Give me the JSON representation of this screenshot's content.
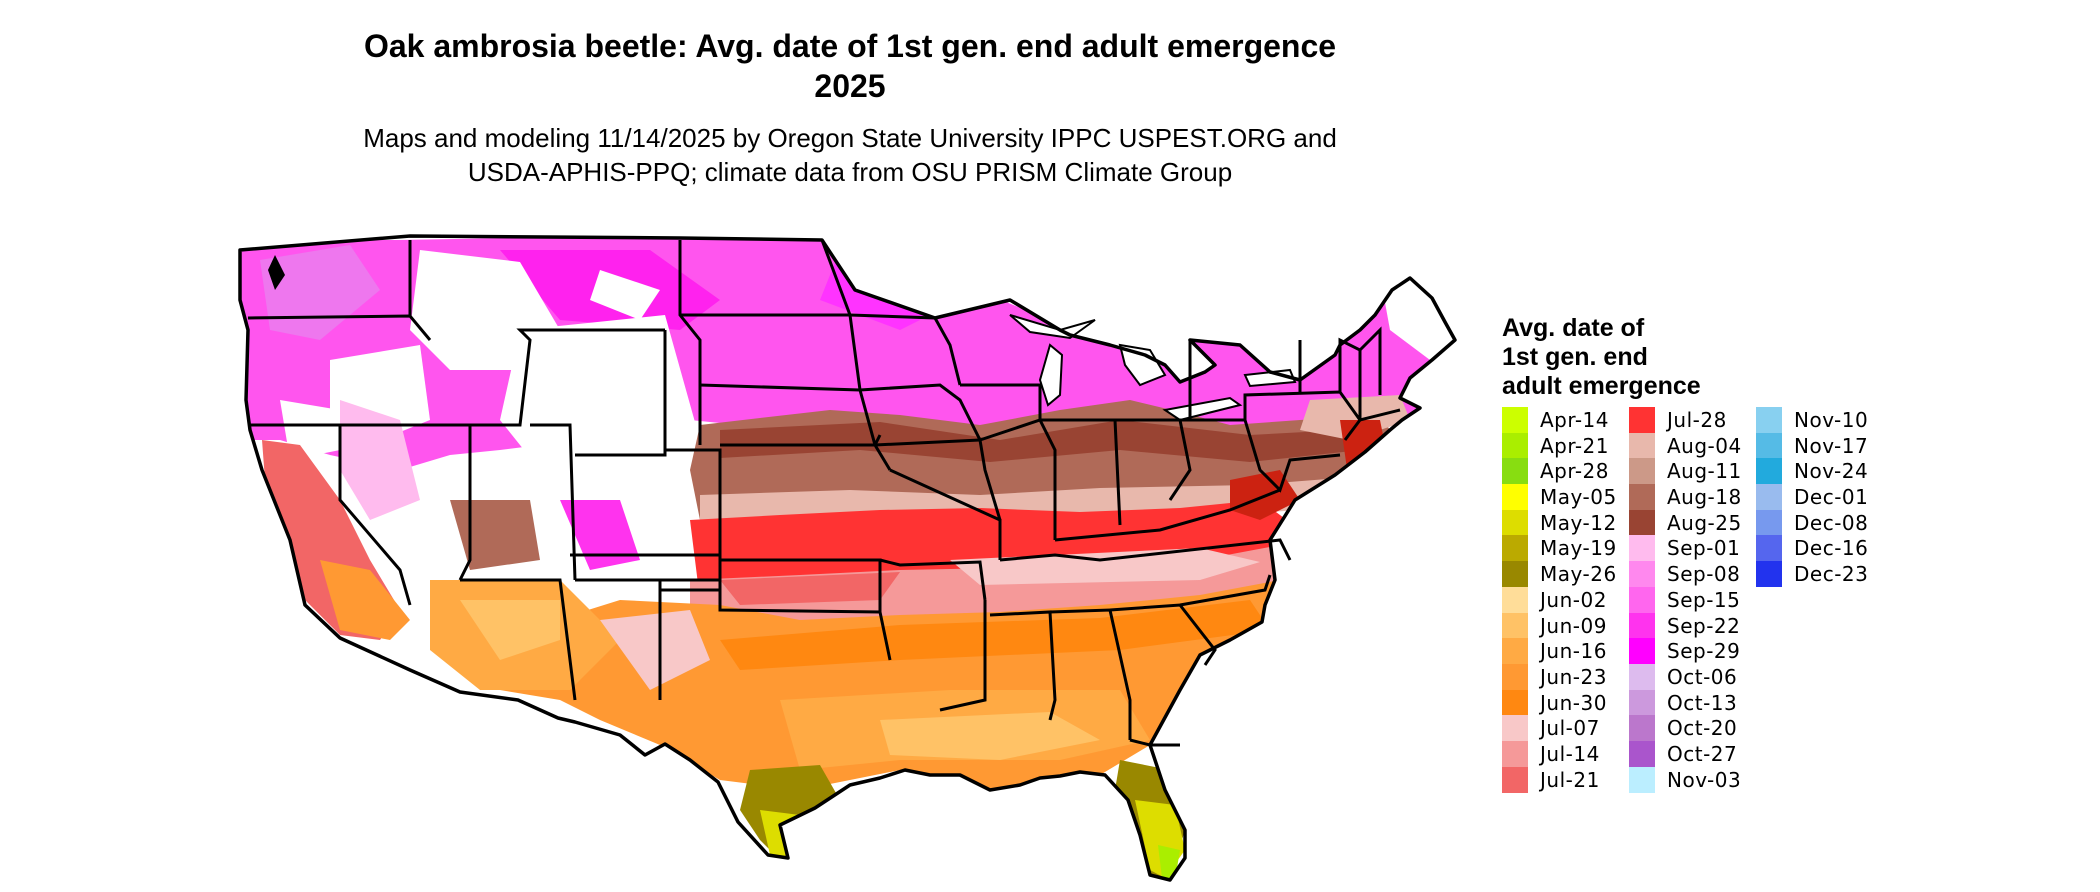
{
  "title": {
    "line1": "Oak ambrosia beetle: Avg. date of 1st gen. end adult emergence",
    "line2": "2025"
  },
  "subtitle": {
    "line1": "Maps and modeling 11/14/2025 by Oregon State University IPPC USPEST.ORG and",
    "line2": "USDA-APHIS-PPQ; climate data from OSU PRISM Climate Group"
  },
  "legend": {
    "title_lines": [
      "Avg. date of",
      "1st gen. end",
      "adult emergence"
    ],
    "columns": [
      [
        {
          "label": "Apr-14",
          "color": "#ccff00"
        },
        {
          "label": "Apr-21",
          "color": "#aaee00"
        },
        {
          "label": "Apr-28",
          "color": "#88dd11"
        },
        {
          "label": "May-05",
          "color": "#ffff00"
        },
        {
          "label": "May-12",
          "color": "#dddd00"
        },
        {
          "label": "May-19",
          "color": "#bbaa00"
        },
        {
          "label": "May-26",
          "color": "#998800"
        },
        {
          "label": "Jun-02",
          "color": "#ffdd99"
        },
        {
          "label": "Jun-09",
          "color": "#ffc266"
        },
        {
          "label": "Jun-16",
          "color": "#ffaa44"
        },
        {
          "label": "Jun-23",
          "color": "#ff9933"
        },
        {
          "label": "Jun-30",
          "color": "#ff8811"
        },
        {
          "label": "Jul-07",
          "color": "#f8c8c8"
        },
        {
          "label": "Jul-14",
          "color": "#f59999"
        },
        {
          "label": "Jul-21",
          "color": "#f26666"
        }
      ],
      [
        {
          "label": "Jul-28",
          "color": "#ff3333"
        },
        {
          "label": "Aug-04",
          "color": "#e8b8ac"
        },
        {
          "label": "Aug-11",
          "color": "#cc9988"
        },
        {
          "label": "Aug-18",
          "color": "#b06a58"
        },
        {
          "label": "Aug-25",
          "color": "#994433"
        },
        {
          "label": "Sep-01",
          "color": "#ffbbee"
        },
        {
          "label": "Sep-08",
          "color": "#ff88ee"
        },
        {
          "label": "Sep-15",
          "color": "#ff66ee"
        },
        {
          "label": "Sep-22",
          "color": "#ff33ee"
        },
        {
          "label": "Sep-29",
          "color": "#ff00ff"
        },
        {
          "label": "Oct-06",
          "color": "#ddbbee"
        },
        {
          "label": "Oct-13",
          "color": "#cc99dd"
        },
        {
          "label": "Oct-20",
          "color": "#bb77cc"
        },
        {
          "label": "Oct-27",
          "color": "#aa55cc"
        },
        {
          "label": "Nov-03",
          "color": "#bbeeff"
        }
      ],
      [
        {
          "label": "Nov-10",
          "color": "#88d0f0"
        },
        {
          "label": "Nov-17",
          "color": "#55bbe6"
        },
        {
          "label": "Nov-24",
          "color": "#22aadd"
        },
        {
          "label": "Dec-01",
          "color": "#99bbee"
        },
        {
          "label": "Dec-08",
          "color": "#7799ee"
        },
        {
          "label": "Dec-16",
          "color": "#5566ee"
        },
        {
          "label": "Dec-23",
          "color": "#2233ee"
        }
      ]
    ]
  }
}
